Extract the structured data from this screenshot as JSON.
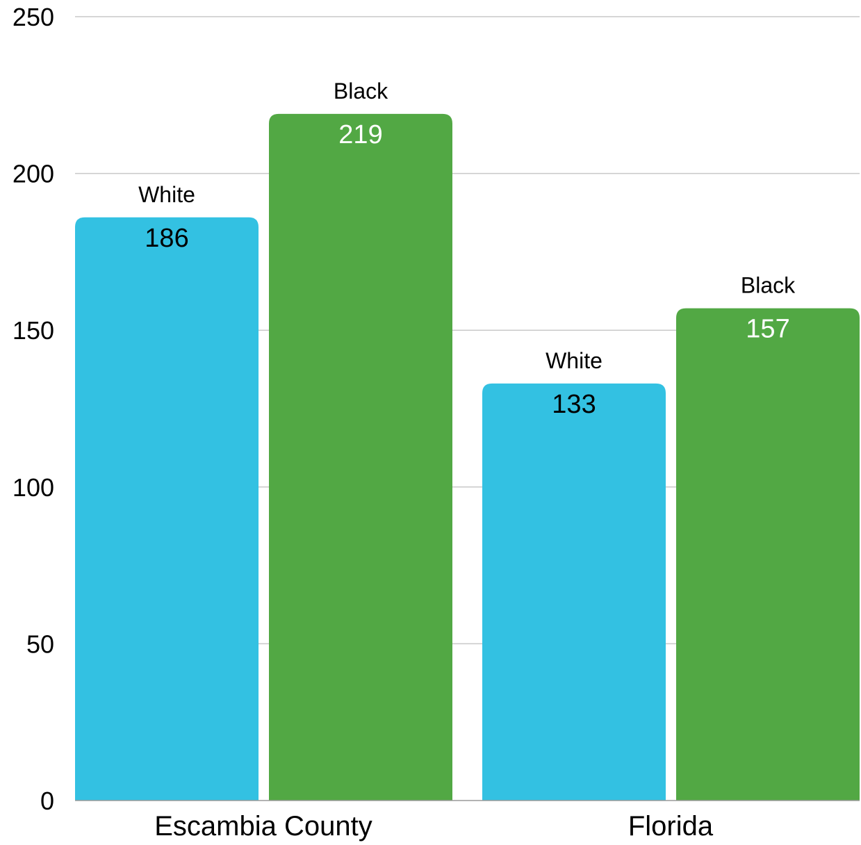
{
  "chart_data": {
    "type": "bar",
    "categories": [
      "Escambia County",
      "Florida"
    ],
    "series": [
      {
        "name": "White",
        "values": [
          186,
          133
        ],
        "color": "#33c1e2",
        "value_label_color": "#000000"
      },
      {
        "name": "Black",
        "values": [
          219,
          157
        ],
        "color": "#52a844",
        "value_label_color": "#ffffff"
      }
    ],
    "title": "",
    "xlabel": "",
    "ylabel": "",
    "ylim": [
      0,
      250
    ],
    "yticks": [
      "0",
      "50",
      "100",
      "150",
      "200",
      "250"
    ],
    "grid": true,
    "legend": "none",
    "bar_labels": "series name above each bar, value inside bar top"
  }
}
